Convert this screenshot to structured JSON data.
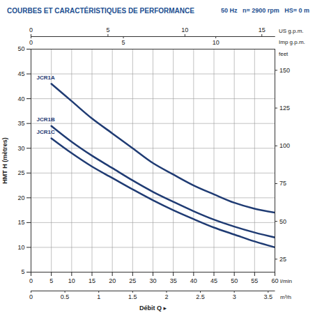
{
  "chart_data": {
    "type": "line",
    "title": "COURBES ET CARACTÉRISTIQUES DE PERFORMANCE",
    "subtitle": "50 Hz   n= 2900 rpm   HS= 0 m",
    "x_label": "Débit Q ▸",
    "x_unit": "l/min",
    "y_label": "HMT H (mètres)",
    "x": [
      5,
      10,
      15,
      20,
      25,
      30,
      35,
      40,
      45,
      50,
      55,
      60
    ],
    "series": [
      {
        "name": "JCR1A",
        "color": "#1f3b73",
        "values": [
          43,
          39.5,
          36,
          33,
          30,
          27,
          24.7,
          22.5,
          20.7,
          19,
          17.8,
          17
        ]
      },
      {
        "name": "JCR1B",
        "color": "#1f3b73",
        "values": [
          34.5,
          31.3,
          28.5,
          26,
          23.5,
          21.2,
          19.2,
          17.3,
          15.6,
          14.2,
          13,
          12
        ]
      },
      {
        "name": "JCR1C",
        "color": "#1f3b73",
        "values": [
          32,
          29,
          26.3,
          24,
          21.7,
          19.5,
          17.5,
          15.7,
          14,
          12.6,
          11.2,
          10
        ]
      }
    ],
    "xlim": [
      0,
      60
    ],
    "xticks": [
      0,
      5,
      10,
      15,
      20,
      25,
      30,
      35,
      40,
      45,
      50,
      55,
      60
    ],
    "ylim": [
      5,
      50
    ],
    "yticks": [
      5,
      10,
      15,
      20,
      25,
      30,
      35,
      40,
      45,
      50
    ],
    "y2lim": [
      16.4,
      164
    ],
    "y2ticks": [
      25,
      50,
      75,
      100,
      125,
      150
    ],
    "y2_label": "feet",
    "secondary_x_axes": [
      {
        "label": "m³/h",
        "position": "bottom",
        "lim": [
          0,
          3.6
        ],
        "ticks": [
          0,
          0.5,
          1,
          1.5,
          2,
          2.5,
          3,
          3.5
        ]
      },
      {
        "label": "US g.p.m.",
        "position": "top",
        "lim": [
          0,
          15.85
        ],
        "ticks": [
          0,
          5,
          10,
          15
        ]
      },
      {
        "label": "Imp g.p.m.",
        "position": "top",
        "lim": [
          0,
          13.2
        ],
        "ticks": [
          0,
          5,
          10
        ]
      }
    ],
    "grid": true
  }
}
